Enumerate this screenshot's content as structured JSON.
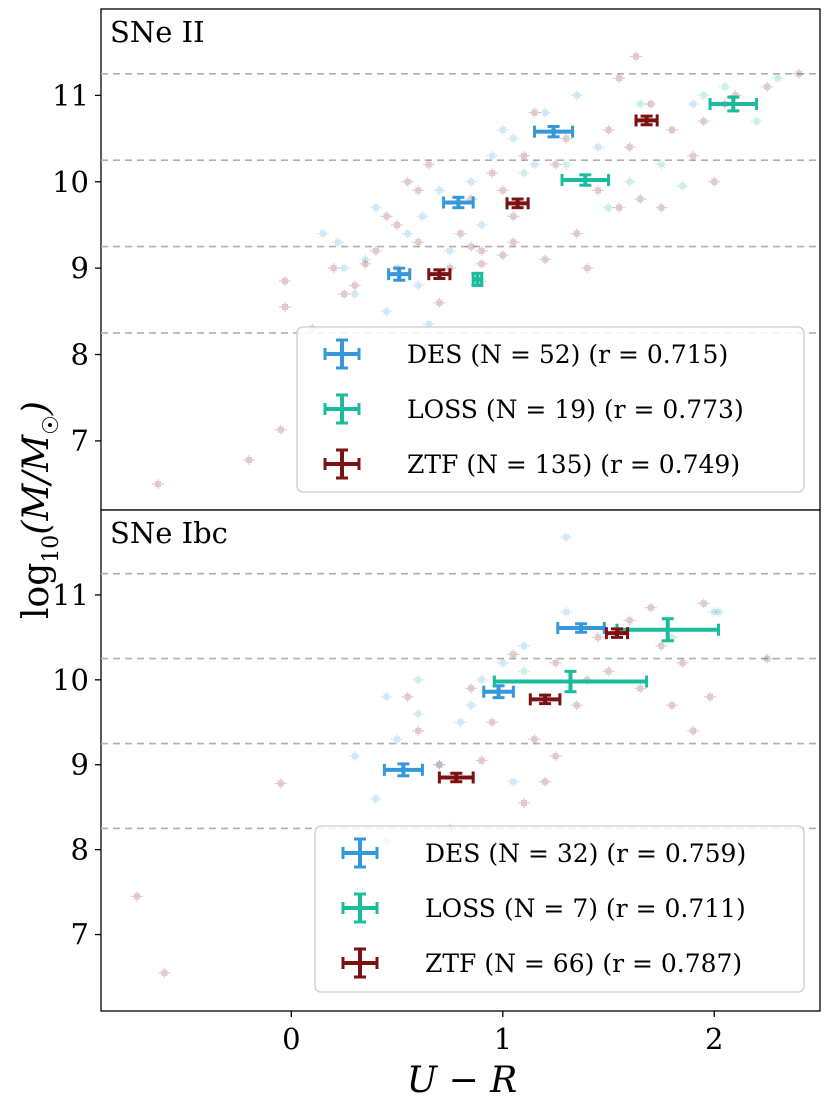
{
  "chart_data": [
    {
      "type": "scatter",
      "title": "SNe II",
      "xlabel": "U − R",
      "ylabel": "log10(M/M☉)",
      "xlim": [
        -0.9,
        2.5
      ],
      "ylim": [
        6.2,
        12.0
      ],
      "x_ticks": [
        0,
        1,
        2
      ],
      "x_tick_labels": [
        "0",
        "1",
        "2"
      ],
      "y_ticks": [
        7,
        8,
        9,
        10,
        11
      ],
      "y_tick_labels": [
        "7",
        "8",
        "9",
        "10",
        "11"
      ],
      "bin_edges": [
        8.25,
        9.25,
        10.25,
        11.25
      ],
      "legend_position": "lower-right",
      "series": [
        {
          "name": "DES",
          "color": "#3498db",
          "label": "DES (N = 52) (r = 0.715)",
          "binned": [
            {
              "x": 0.51,
              "xerr": 0.05,
              "y": 8.93,
              "yerr": 0.07
            },
            {
              "x": 0.79,
              "xerr": 0.07,
              "y": 9.76,
              "yerr": 0.06
            },
            {
              "x": 1.24,
              "xerr": 0.09,
              "y": 10.58,
              "yerr": 0.06
            }
          ],
          "points": [
            [
              0.22,
              9.3
            ],
            [
              0.35,
              9.1
            ],
            [
              0.45,
              8.5
            ],
            [
              0.55,
              9.4
            ],
            [
              0.62,
              9.6
            ],
            [
              0.7,
              9.9
            ],
            [
              0.85,
              10.0
            ],
            [
              0.95,
              10.3
            ],
            [
              1.05,
              10.5
            ],
            [
              1.15,
              10.2
            ],
            [
              0.3,
              8.7
            ],
            [
              0.5,
              9.0
            ],
            [
              0.6,
              8.8
            ],
            [
              0.75,
              9.2
            ],
            [
              0.9,
              9.5
            ],
            [
              1.0,
              10.6
            ],
            [
              1.2,
              10.8
            ],
            [
              0.4,
              9.7
            ],
            [
              0.25,
              9.0
            ],
            [
              1.45,
              10.4
            ],
            [
              1.9,
              10.9
            ],
            [
              0.65,
              8.35
            ],
            [
              0.15,
              9.4
            ],
            [
              1.35,
              11.0
            ]
          ]
        },
        {
          "name": "LOSS",
          "color": "#1abc9c",
          "label": "LOSS (N = 19) (r = 0.773)",
          "binned": [
            {
              "x": 0.88,
              "xerr": 0.02,
              "y": 8.87,
              "yerr": 0.07
            },
            {
              "x": 1.39,
              "xerr": 0.11,
              "y": 10.02,
              "yerr": 0.06
            },
            {
              "x": 2.09,
              "xerr": 0.11,
              "y": 10.9,
              "yerr": 0.08
            }
          ],
          "points": [
            [
              0.9,
              8.85
            ],
            [
              1.3,
              10.2
            ],
            [
              1.5,
              9.7
            ],
            [
              1.6,
              10.0
            ],
            [
              1.85,
              9.95
            ],
            [
              1.95,
              11.0
            ],
            [
              2.05,
              11.1
            ],
            [
              2.2,
              10.7
            ],
            [
              1.75,
              10.2
            ],
            [
              1.65,
              10.9
            ],
            [
              2.3,
              11.2
            ],
            [
              1.1,
              10.1
            ]
          ]
        },
        {
          "name": "ZTF",
          "color": "#7b1111",
          "label": "ZTF (N = 135) (r = 0.749)",
          "binned": [
            {
              "x": 0.7,
              "xerr": 0.05,
              "y": 8.93,
              "yerr": 0.05
            },
            {
              "x": 1.07,
              "xerr": 0.05,
              "y": 9.75,
              "yerr": 0.05
            },
            {
              "x": 1.68,
              "xerr": 0.05,
              "y": 10.71,
              "yerr": 0.05
            }
          ],
          "points": [
            [
              -0.03,
              8.85
            ],
            [
              -0.03,
              8.55
            ],
            [
              0.1,
              8.3
            ],
            [
              0.2,
              9.0
            ],
            [
              0.3,
              8.8
            ],
            [
              0.4,
              9.2
            ],
            [
              0.5,
              9.5
            ],
            [
              0.6,
              9.3
            ],
            [
              0.7,
              8.6
            ],
            [
              0.75,
              9.0
            ],
            [
              0.8,
              9.4
            ],
            [
              0.85,
              9.8
            ],
            [
              0.9,
              9.2
            ],
            [
              0.95,
              10.1
            ],
            [
              1.0,
              9.9
            ],
            [
              1.05,
              9.6
            ],
            [
              1.1,
              10.3
            ],
            [
              1.2,
              9.1
            ],
            [
              1.3,
              10.5
            ],
            [
              1.4,
              9.0
            ],
            [
              1.5,
              10.6
            ],
            [
              1.55,
              11.2
            ],
            [
              1.6,
              10.4
            ],
            [
              1.65,
              9.8
            ],
            [
              1.7,
              10.9
            ],
            [
              1.8,
              10.6
            ],
            [
              1.9,
              10.3
            ],
            [
              2.0,
              10.0
            ],
            [
              2.05,
              10.9
            ],
            [
              2.1,
              11.0
            ],
            [
              2.25,
              11.1
            ],
            [
              2.4,
              11.25
            ],
            [
              1.63,
              11.45
            ],
            [
              1.95,
              10.7
            ],
            [
              0.45,
              9.6
            ],
            [
              0.55,
              10.0
            ],
            [
              0.65,
              10.2
            ],
            [
              0.6,
              9.9
            ],
            [
              1.15,
              10.8
            ],
            [
              1.25,
              10.2
            ],
            [
              1.35,
              9.4
            ],
            [
              1.55,
              9.7
            ],
            [
              0.35,
              9.05
            ],
            [
              0.25,
              8.7
            ],
            [
              0.85,
              9.25
            ],
            [
              0.9,
              9.05
            ],
            [
              1.0,
              9.15
            ],
            [
              1.05,
              9.3
            ],
            [
              1.45,
              9.9
            ],
            [
              1.75,
              9.7
            ],
            [
              -0.05,
              7.13
            ],
            [
              -0.2,
              6.78
            ],
            [
              -0.63,
              6.5
            ],
            [
              0.9,
              8.1
            ]
          ]
        }
      ]
    },
    {
      "type": "scatter",
      "title": "SNe Ibc",
      "xlabel": "U − R",
      "ylabel": "log10(M/M☉)",
      "xlim": [
        -0.9,
        2.5
      ],
      "ylim": [
        6.1,
        12.0
      ],
      "x_ticks": [
        0,
        1,
        2
      ],
      "x_tick_labels": [
        "0",
        "1",
        "2"
      ],
      "y_ticks": [
        7,
        8,
        9,
        10,
        11
      ],
      "y_tick_labels": [
        "7",
        "8",
        "9",
        "10",
        "11"
      ],
      "bin_edges": [
        8.25,
        9.25,
        10.25,
        11.25
      ],
      "legend_position": "lower-right",
      "series": [
        {
          "name": "DES",
          "color": "#3498db",
          "label": "DES (N = 32) (r = 0.759)",
          "binned": [
            {
              "x": 0.53,
              "xerr": 0.09,
              "y": 8.94,
              "yerr": 0.07
            },
            {
              "x": 0.98,
              "xerr": 0.07,
              "y": 9.86,
              "yerr": 0.07
            },
            {
              "x": 1.37,
              "xerr": 0.11,
              "y": 10.61,
              "yerr": 0.05
            }
          ],
          "points": [
            [
              0.3,
              9.1
            ],
            [
              0.5,
              9.3
            ],
            [
              0.6,
              9.6
            ],
            [
              0.8,
              9.5
            ],
            [
              0.9,
              10.0
            ],
            [
              1.0,
              10.2
            ],
            [
              1.1,
              10.4
            ],
            [
              1.2,
              9.8
            ],
            [
              1.3,
              10.8
            ],
            [
              1.3,
              11.68
            ],
            [
              0.4,
              8.6
            ],
            [
              0.7,
              9.0
            ],
            [
              0.85,
              9.7
            ],
            [
              1.05,
              8.8
            ],
            [
              2.0,
              10.8
            ],
            [
              0.45,
              9.8
            ]
          ]
        },
        {
          "name": "LOSS",
          "color": "#1abc9c",
          "label": "LOSS (N = 7) (r = 0.711)",
          "binned": [
            {
              "x": 1.32,
              "xerr": 0.36,
              "y": 9.98,
              "yerr": 0.12
            },
            {
              "x": 1.78,
              "xerr": 0.24,
              "y": 10.59,
              "yerr": 0.13
            }
          ],
          "points": [
            [
              0.6,
              10.0
            ],
            [
              1.1,
              10.1
            ],
            [
              1.8,
              10.5
            ],
            [
              2.02,
              10.8
            ]
          ]
        },
        {
          "name": "ZTF",
          "color": "#7b1111",
          "label": "ZTF (N = 66) (r = 0.787)",
          "binned": [
            {
              "x": 0.78,
              "xerr": 0.08,
              "y": 8.85,
              "yerr": 0.05
            },
            {
              "x": 1.2,
              "xerr": 0.07,
              "y": 9.77,
              "yerr": 0.05
            },
            {
              "x": 1.54,
              "xerr": 0.05,
              "y": 10.55,
              "yerr": 0.05
            }
          ],
          "points": [
            [
              -0.05,
              8.78
            ],
            [
              0.6,
              9.4
            ],
            [
              0.7,
              9.0
            ],
            [
              0.85,
              9.9
            ],
            [
              0.95,
              9.5
            ],
            [
              1.05,
              10.3
            ],
            [
              1.15,
              9.3
            ],
            [
              1.25,
              10.2
            ],
            [
              1.35,
              9.7
            ],
            [
              1.45,
              10.5
            ],
            [
              1.5,
              10.1
            ],
            [
              1.6,
              10.7
            ],
            [
              1.65,
              9.9
            ],
            [
              1.7,
              10.85
            ],
            [
              1.75,
              10.4
            ],
            [
              1.8,
              9.7
            ],
            [
              1.85,
              10.2
            ],
            [
              1.9,
              9.4
            ],
            [
              1.95,
              10.9
            ],
            [
              1.98,
              9.8
            ],
            [
              2.25,
              10.25
            ],
            [
              1.2,
              8.8
            ],
            [
              1.1,
              8.55
            ],
            [
              0.9,
              9.05
            ],
            [
              1.25,
              9.1
            ],
            [
              0.75,
              8.25
            ],
            [
              0.55,
              9.8
            ],
            [
              1.4,
              10.0
            ],
            [
              -0.73,
              7.45
            ],
            [
              -0.6,
              6.55
            ],
            [
              0.45,
              8.1
            ]
          ]
        }
      ]
    }
  ]
}
